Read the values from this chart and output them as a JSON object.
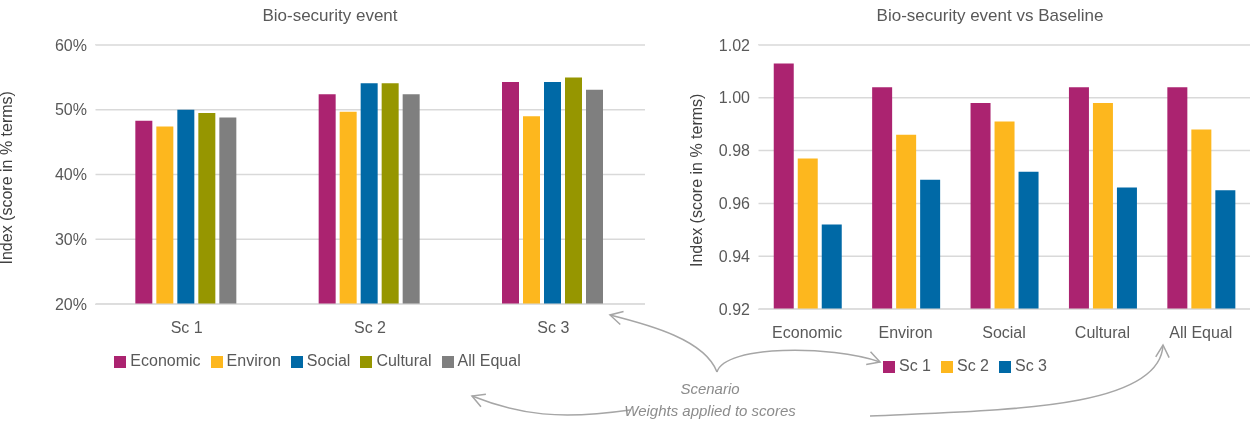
{
  "chart_data": [
    {
      "type": "bar",
      "title": "Bio-security event",
      "ylabel": "Index (score in % terms)",
      "categories": [
        "Sc 1",
        "Sc 2",
        "Sc 3"
      ],
      "series": [
        {
          "name": "Economic",
          "color": "#ab2370",
          "values": [
            48.3,
            52.4,
            54.3
          ]
        },
        {
          "name": "Environ",
          "color": "#fdb71e",
          "values": [
            47.4,
            49.7,
            49.0
          ]
        },
        {
          "name": "Social",
          "color": "#0069a6",
          "values": [
            50.0,
            54.1,
            54.3
          ]
        },
        {
          "name": "Cultural",
          "color": "#969600",
          "values": [
            49.5,
            54.1,
            55.0
          ]
        },
        {
          "name": "All Equal",
          "color": "#7f7f7f",
          "values": [
            48.8,
            52.4,
            53.1
          ]
        }
      ],
      "ylim": [
        20,
        60
      ],
      "yticks": [
        {
          "value": 20,
          "label": "20%"
        },
        {
          "value": 30,
          "label": "30%"
        },
        {
          "value": 40,
          "label": "40%"
        },
        {
          "value": 50,
          "label": "50%"
        },
        {
          "value": 60,
          "label": "60%"
        }
      ],
      "grid": "y",
      "legend": "bottom"
    },
    {
      "type": "bar",
      "title": "Bio-security event vs Baseline",
      "ylabel": "Index (score in % terms)",
      "categories": [
        "Economic",
        "Environ",
        "Social",
        "Cultural",
        "All Equal"
      ],
      "series": [
        {
          "name": "Sc 1",
          "color": "#ab2370",
          "values": [
            1.013,
            1.004,
            0.998,
            1.004,
            1.004
          ]
        },
        {
          "name": "Sc 2",
          "color": "#fdb71e",
          "values": [
            0.977,
            0.986,
            0.991,
            0.998,
            0.988
          ]
        },
        {
          "name": "Sc 3",
          "color": "#0069a6",
          "values": [
            0.952,
            0.969,
            0.972,
            0.966,
            0.965
          ]
        }
      ],
      "ylim": [
        0.92,
        1.02
      ],
      "yticks": [
        {
          "value": 0.92,
          "label": "0.92"
        },
        {
          "value": 0.94,
          "label": "0.94"
        },
        {
          "value": 0.96,
          "label": "0.96"
        },
        {
          "value": 0.98,
          "label": "0.98"
        },
        {
          "value": 1.0,
          "label": "1.00"
        },
        {
          "value": 1.02,
          "label": "1.02"
        }
      ],
      "grid": "y",
      "legend": "bottom",
      "annotations": [
        "Scenario",
        "Weights applied to scores"
      ]
    }
  ]
}
